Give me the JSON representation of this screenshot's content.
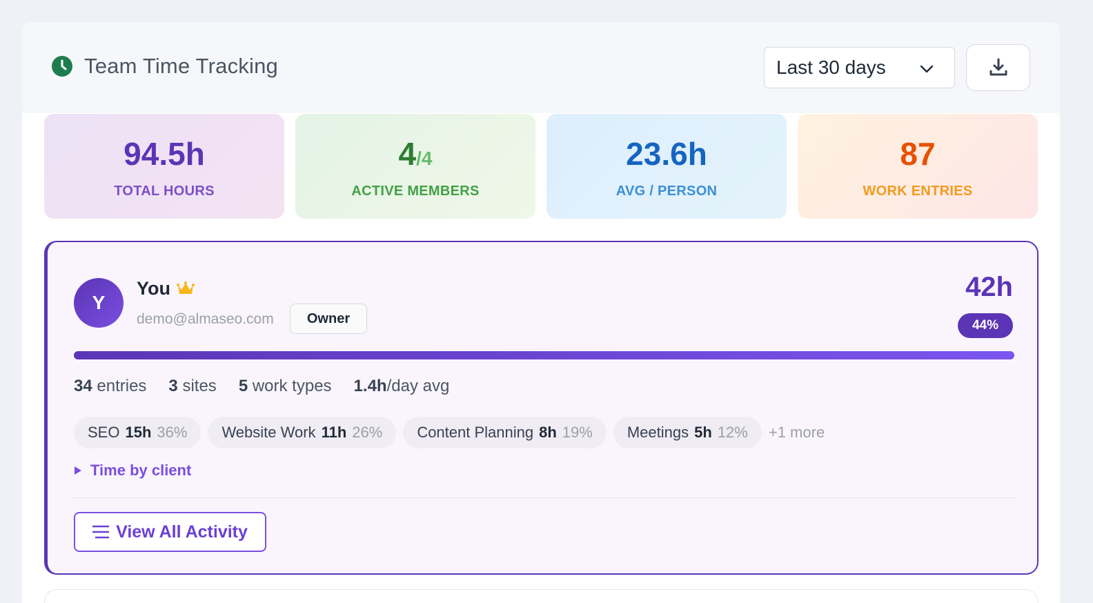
{
  "header": {
    "title": "Team Time Tracking",
    "range_label": "Last 30 days"
  },
  "stats": {
    "total_hours": {
      "value": "94.5h",
      "label": "TOTAL HOURS"
    },
    "active_members": {
      "value": "4",
      "sub": "/4",
      "label": "ACTIVE MEMBERS"
    },
    "avg_person": {
      "value": "23.6h",
      "label": "AVG / PERSON"
    },
    "work_entries": {
      "value": "87",
      "label": "WORK ENTRIES"
    }
  },
  "member": {
    "avatar_initial": "Y",
    "name": "You",
    "email": "demo@almaseo.com",
    "role": "Owner",
    "hours": "42h",
    "percent": "44%",
    "share_fraction": 1.0,
    "metrics": {
      "entries": "34",
      "entries_label": "entries",
      "sites": "3",
      "sites_label": "sites",
      "work_types": "5",
      "work_types_label": "work types",
      "per_day": "1.4h",
      "per_day_label": "/day avg"
    },
    "chips": [
      {
        "name": "SEO",
        "hours": "15h",
        "pct": "36%"
      },
      {
        "name": "Website Work",
        "hours": "11h",
        "pct": "26%"
      },
      {
        "name": "Content Planning",
        "hours": "8h",
        "pct": "19%"
      },
      {
        "name": "Meetings",
        "hours": "5h",
        "pct": "12%"
      }
    ],
    "more_label": "+1 more",
    "client_toggle": "Time by client",
    "view_all": "View All Activity"
  },
  "colors": {
    "accent": "#5b35b5",
    "clock_icon": "#1e7d4f",
    "crown_icon": "#f5b81c"
  },
  "icons": {
    "clock": "clock-icon",
    "chevron": "chevron-down-icon",
    "download": "download-icon",
    "crown": "crown-icon",
    "caret": "caret-right-icon",
    "list": "list-icon"
  }
}
